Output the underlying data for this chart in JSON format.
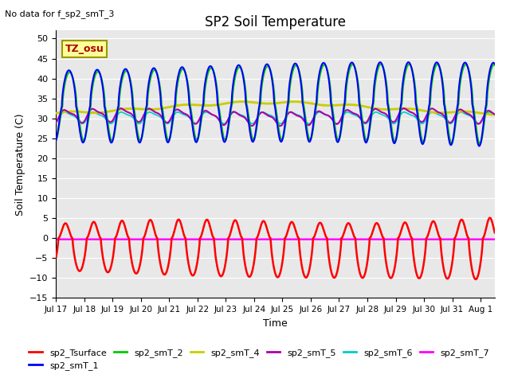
{
  "title": "SP2 Soil Temperature",
  "subtitle": "No data for f_sp2_smT_3",
  "ylabel": "Soil Temperature (C)",
  "xlabel": "Time",
  "tz_label": "TZ_osu",
  "ylim": [
    -15,
    52
  ],
  "yticks": [
    -15,
    -10,
    -5,
    0,
    5,
    10,
    15,
    20,
    25,
    30,
    35,
    40,
    45,
    50
  ],
  "colors": {
    "sp2_Tsurface": "#FF0000",
    "sp2_smT_1": "#0000FF",
    "sp2_smT_2": "#00CC00",
    "sp2_smT_4": "#CCCC00",
    "sp2_smT_5": "#AA00AA",
    "sp2_smT_6": "#00CCCC",
    "sp2_smT_7": "#FF00FF"
  },
  "xtick_labels": [
    "Jul 17",
    "Jul 18",
    "Jul 19",
    "Jul 20",
    "Jul 21",
    "Jul 22",
    "Jul 23",
    "Jul 24",
    "Jul 25",
    "Jul 26",
    "Jul 27",
    "Jul 28",
    "Jul 29",
    "Jul 30",
    "Jul 31",
    "Aug 1"
  ],
  "plot_bg_color": "#E8E8E8",
  "fig_bg_color": "#FFFFFF",
  "grid_color": "#FFFFFF"
}
